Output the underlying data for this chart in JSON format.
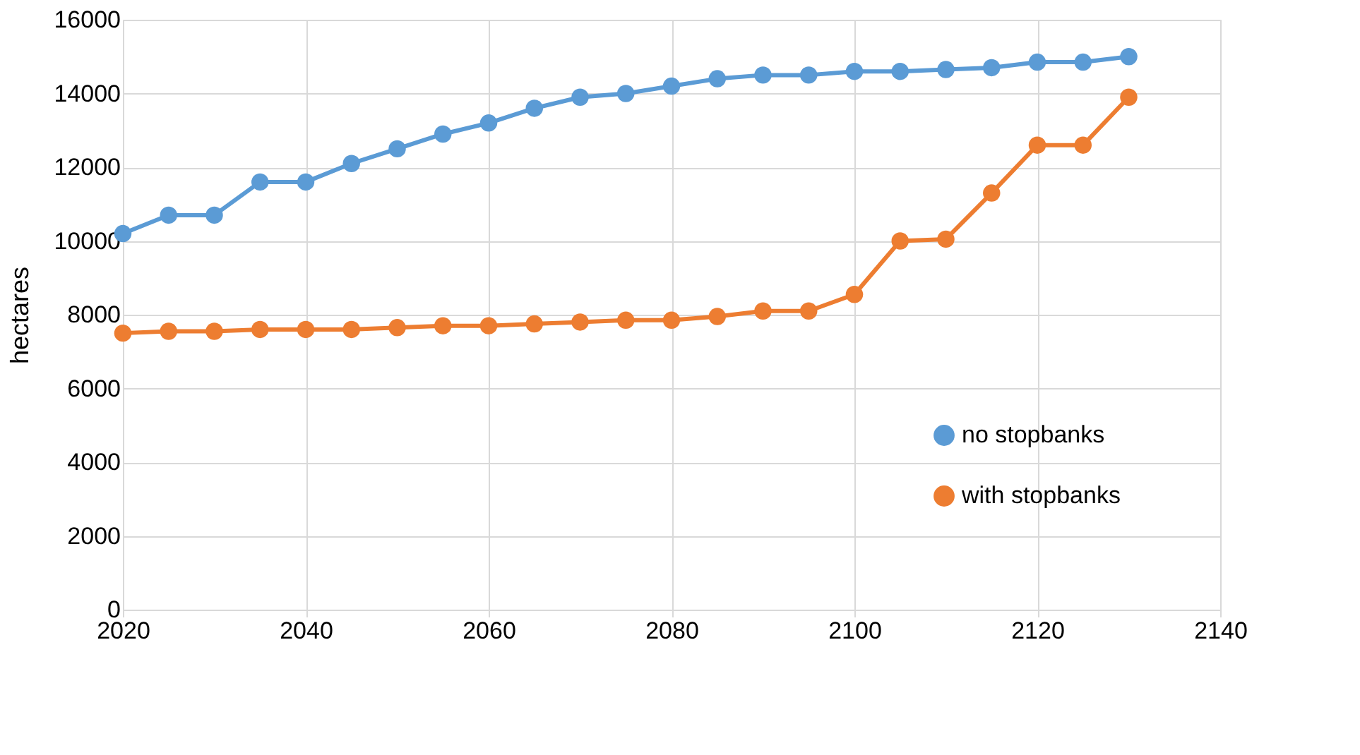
{
  "chart_data": {
    "type": "line",
    "ylabel": "hectares",
    "x": [
      2020,
      2025,
      2030,
      2035,
      2040,
      2045,
      2050,
      2055,
      2060,
      2065,
      2070,
      2075,
      2080,
      2085,
      2090,
      2095,
      2100,
      2105,
      2110,
      2115,
      2120,
      2125,
      2130
    ],
    "series": [
      {
        "name": "no stopbanks",
        "color": "#5b9bd5",
        "values": [
          10200,
          10700,
          10700,
          11600,
          11600,
          12100,
          12500,
          12900,
          13200,
          13600,
          13900,
          14000,
          14200,
          14400,
          14500,
          14500,
          14600,
          14600,
          14650,
          14700,
          14850,
          14850,
          15000
        ]
      },
      {
        "name": "with stopbanks",
        "color": "#ed7d31",
        "values": [
          7500,
          7550,
          7550,
          7600,
          7600,
          7600,
          7650,
          7700,
          7700,
          7750,
          7800,
          7850,
          7850,
          7950,
          8100,
          8100,
          8550,
          10000,
          10050,
          11300,
          12600,
          12600,
          13900
        ]
      }
    ],
    "xlim": [
      2020,
      2140
    ],
    "xticks": [
      2020,
      2040,
      2060,
      2080,
      2100,
      2120,
      2140
    ],
    "ylim": [
      0,
      16000
    ],
    "yticks": [
      0,
      2000,
      4000,
      6000,
      8000,
      10000,
      12000,
      14000,
      16000
    ],
    "grid": true,
    "legend": "bottom right",
    "marker": "circle",
    "line_style": "solid"
  }
}
